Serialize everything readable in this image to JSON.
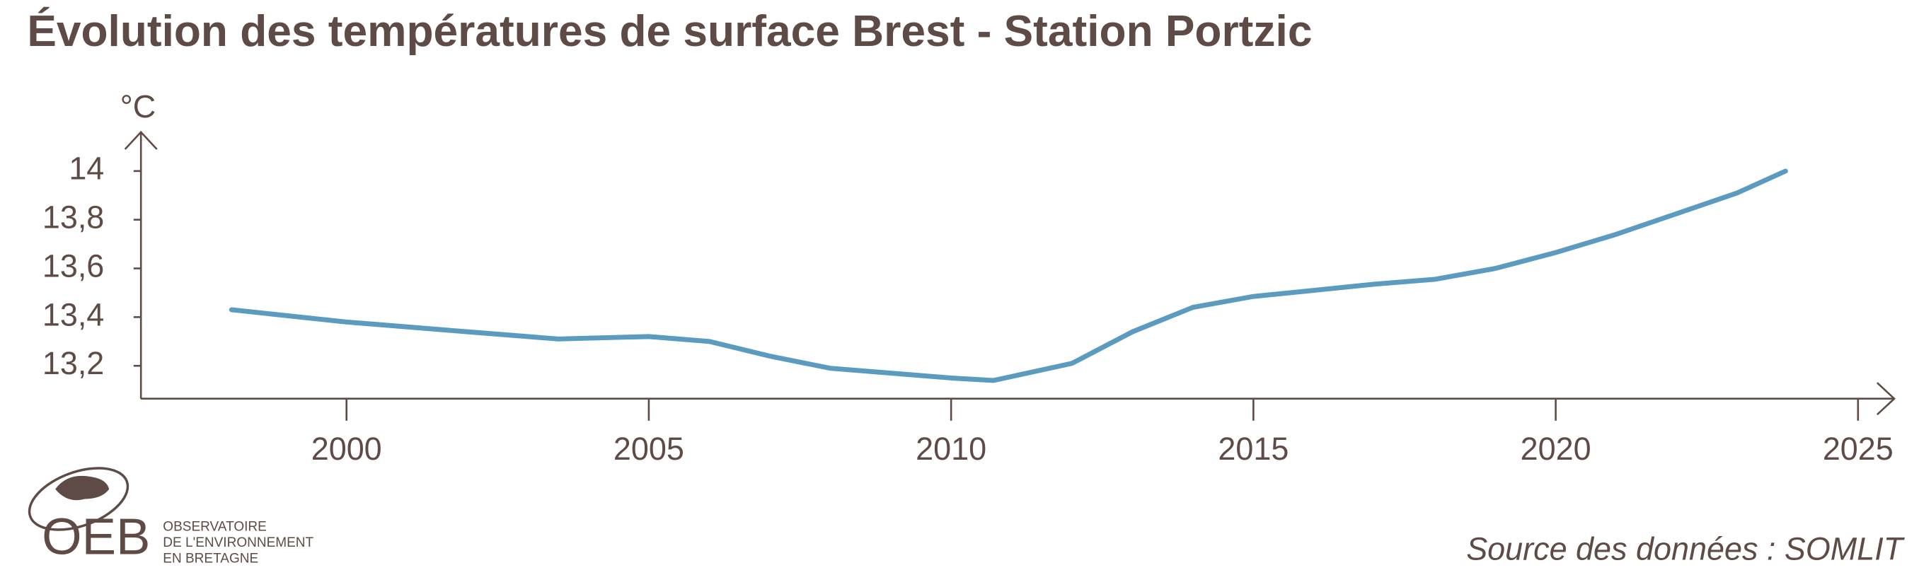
{
  "chart_data": {
    "type": "line",
    "title": "Évolution des températures de surface Brest - Station Portzic",
    "y_unit": "°C",
    "source": "Source des données : SOMLIT",
    "logo": {
      "acronym": "OEB",
      "lines": [
        "OBSERVATOIRE",
        "DE L'ENVIRONNEMENT",
        "EN BRETAGNE"
      ]
    },
    "color": "#5b9bc0",
    "x": [
      1998.1,
      2000,
      2002,
      2003.5,
      2005,
      2006,
      2007,
      2008,
      2009,
      2010,
      2010.7,
      2012,
      2013,
      2014,
      2015,
      2016,
      2017,
      2018,
      2019,
      2020,
      2021,
      2022,
      2023,
      2023.8
    ],
    "values": [
      13.43,
      13.38,
      13.34,
      13.31,
      13.32,
      13.3,
      13.24,
      13.19,
      13.17,
      13.15,
      13.14,
      13.21,
      13.34,
      13.44,
      13.485,
      13.51,
      13.535,
      13.555,
      13.6,
      13.665,
      13.74,
      13.825,
      13.91,
      14.0
    ],
    "xlim": [
      1996.6,
      2025.6
    ],
    "xticks": [
      2000,
      2005,
      2010,
      2015,
      2020,
      2025
    ],
    "ylim": [
      13.065,
      14.16
    ],
    "yticks": [
      {
        "value": 13.2,
        "label": "13,2"
      },
      {
        "value": 13.4,
        "label": "13,4"
      },
      {
        "value": 13.6,
        "label": "13,6"
      },
      {
        "value": 13.8,
        "label": "13,8"
      },
      14
    ]
  }
}
